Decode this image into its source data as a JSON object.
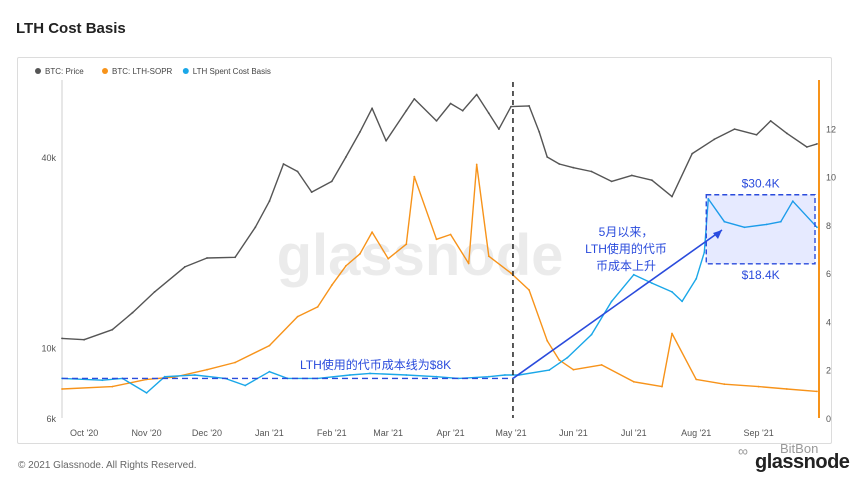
{
  "title": "LTH Cost Basis",
  "footer": "© 2021 Glassnode. All Rights Reserved.",
  "brand": "glassnode",
  "watermark_brand": "BitBon",
  "watermark": "glassnode",
  "colors": {
    "price": "#555555",
    "sopr": "#f7931a",
    "spent": "#1aa7e8",
    "annot": "#2a4bdc"
  },
  "chart_data": {
    "type": "line",
    "x_ticks": [
      "Oct '20",
      "Nov '20",
      "Dec '20",
      "Jan '21",
      "Feb '21",
      "Mar '21",
      "Apr '21",
      "May '21",
      "Jun '21",
      "Jul '21",
      "Aug '21",
      "Sep '21"
    ],
    "x_range": [
      "2020-09-20",
      "2021-09-30"
    ],
    "y_left": {
      "scale": "log",
      "range": [
        6000,
        70000
      ],
      "ticks": [
        "6k",
        "10k",
        "40k"
      ]
    },
    "y_right": {
      "scale": "linear",
      "range": [
        0,
        14
      ],
      "ticks": [
        "0",
        "2",
        "4",
        "6",
        "8",
        "10",
        "12"
      ]
    },
    "legend": [
      "BTC: Price",
      "BTC: LTH-SOPR",
      "LTH Spent Cost Basis"
    ],
    "legend_position": "top-left",
    "series": [
      {
        "name": "BTC: Price",
        "axis": "left",
        "x": [
          "2020-09-20",
          "2020-10-01",
          "2020-10-15",
          "2020-10-25",
          "2020-11-05",
          "2020-11-20",
          "2020-12-01",
          "2020-12-15",
          "2020-12-25",
          "2021-01-01",
          "2021-01-08",
          "2021-01-15",
          "2021-01-22",
          "2021-02-01",
          "2021-02-08",
          "2021-02-15",
          "2021-02-21",
          "2021-02-28",
          "2021-03-10",
          "2021-03-14",
          "2021-03-25",
          "2021-04-01",
          "2021-04-07",
          "2021-04-14",
          "2021-04-20",
          "2021-04-25",
          "2021-05-01",
          "2021-05-10",
          "2021-05-15",
          "2021-05-19",
          "2021-05-25",
          "2021-06-01",
          "2021-06-10",
          "2021-06-20",
          "2021-06-30",
          "2021-07-10",
          "2021-07-20",
          "2021-07-30",
          "2021-08-10",
          "2021-08-20",
          "2021-08-31",
          "2021-09-07",
          "2021-09-15",
          "2021-09-25",
          "2021-09-30"
        ],
        "y": [
          10700,
          10600,
          11400,
          12900,
          15000,
          18000,
          19200,
          19300,
          24000,
          29000,
          38000,
          36000,
          31000,
          33500,
          40000,
          48000,
          57000,
          45000,
          56000,
          61000,
          52000,
          59000,
          56000,
          63000,
          55000,
          49000,
          57700,
          58000,
          48000,
          40000,
          38000,
          37000,
          36000,
          33500,
          35000,
          33800,
          30000,
          41000,
          45500,
          49000,
          47000,
          52000,
          47500,
          43000,
          44000
        ]
      },
      {
        "name": "BTC: LTH-SOPR",
        "axis": "right",
        "x": [
          "2020-09-20",
          "2020-10-15",
          "2020-11-01",
          "2020-11-15",
          "2020-12-01",
          "2020-12-15",
          "2021-01-01",
          "2021-01-15",
          "2021-01-25",
          "2021-02-01",
          "2021-02-08",
          "2021-02-15",
          "2021-02-21",
          "2021-03-01",
          "2021-03-10",
          "2021-03-14",
          "2021-03-25",
          "2021-04-01",
          "2021-04-10",
          "2021-04-14",
          "2021-04-20",
          "2021-05-01",
          "2021-05-10",
          "2021-05-19",
          "2021-05-25",
          "2021-06-01",
          "2021-06-15",
          "2021-07-01",
          "2021-07-15",
          "2021-07-20",
          "2021-08-01",
          "2021-08-15",
          "2021-09-01",
          "2021-09-15",
          "2021-09-30"
        ],
        "y": [
          1.2,
          1.3,
          1.6,
          1.7,
          2.0,
          2.3,
          3.0,
          4.2,
          4.6,
          5.5,
          6.3,
          6.8,
          7.7,
          6.6,
          7.2,
          10.0,
          7.4,
          7.6,
          6.4,
          10.5,
          6.7,
          6.0,
          5.3,
          3.2,
          2.4,
          2.0,
          2.2,
          1.5,
          1.3,
          3.5,
          1.6,
          1.4,
          1.3,
          1.2,
          1.1
        ]
      },
      {
        "name": "LTH Spent Cost Basis",
        "axis": "left",
        "x": [
          "2020-09-20",
          "2020-10-10",
          "2020-10-20",
          "2020-11-01",
          "2020-11-10",
          "2020-11-25",
          "2020-12-10",
          "2020-12-20",
          "2021-01-01",
          "2021-01-10",
          "2021-01-25",
          "2021-02-10",
          "2021-02-20",
          "2021-03-10",
          "2021-03-25",
          "2021-04-05",
          "2021-04-20",
          "2021-04-28",
          "2021-05-05",
          "2021-05-20",
          "2021-05-29",
          "2021-06-10",
          "2021-06-20",
          "2021-07-01",
          "2021-07-10",
          "2021-07-20",
          "2021-07-25",
          "2021-08-01",
          "2021-08-05",
          "2021-08-07",
          "2021-08-15",
          "2021-08-25",
          "2021-09-05",
          "2021-09-12",
          "2021-09-18",
          "2021-09-30"
        ],
        "y": [
          8000,
          7900,
          8000,
          7200,
          8100,
          8200,
          8000,
          7600,
          8400,
          8000,
          8000,
          8200,
          8300,
          8200,
          8100,
          8000,
          8100,
          8200,
          8200,
          8500,
          9300,
          11000,
          14000,
          17000,
          16000,
          15000,
          14000,
          16500,
          20000,
          29500,
          25000,
          24000,
          24500,
          25000,
          29000,
          24000
        ]
      }
    ],
    "annotations": [
      {
        "text": "LTH使用的代币成本线为$8K"
      },
      {
        "text": "5月以来，\nLTH使用的代币\n币成本上升"
      },
      {
        "text": "$30.4K"
      },
      {
        "text": "$18.4K"
      }
    ]
  }
}
